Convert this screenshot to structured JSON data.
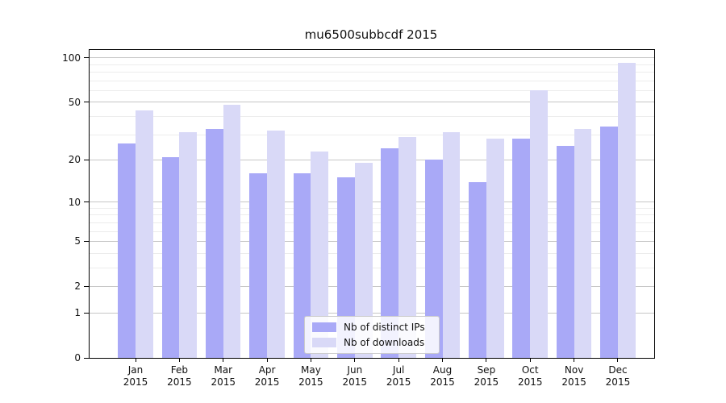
{
  "title": "mu6500subbcdf 2015",
  "chart_data": {
    "type": "bar",
    "title": "mu6500subbcdf 2015",
    "categories": [
      "Jan",
      "Feb",
      "Mar",
      "Apr",
      "May",
      "Jun",
      "Jul",
      "Aug",
      "Sep",
      "Oct",
      "Nov",
      "Dec"
    ],
    "year_label": "2015",
    "series": [
      {
        "name": "Nb of distinct IPs",
        "color": "#a9a9f7",
        "values": [
          26,
          21,
          33,
          16,
          16,
          15,
          24,
          20,
          14,
          28,
          25,
          34
        ]
      },
      {
        "name": "Nb of downloads",
        "color": "#d9d9f7",
        "values": [
          44,
          31,
          48,
          32,
          23,
          19,
          29,
          31,
          28,
          60,
          33,
          93
        ]
      }
    ],
    "xlabel": "",
    "ylabel": "",
    "yscale": "log1p",
    "ylim": [
      0,
      113
    ],
    "yticks": [
      0,
      1,
      2,
      5,
      10,
      20,
      50,
      100
    ],
    "minor_yticks": [
      3,
      4,
      6,
      7,
      8,
      9,
      30,
      40,
      60,
      70,
      80,
      90
    ],
    "grid": "horizontal",
    "legend_position": "inside lower-center"
  },
  "colors": {
    "major_grid": "#c6c6c6",
    "minor_grid": "#ececec",
    "axis": "#000000",
    "text": "#111111",
    "legend_border": "#cccccc",
    "background": "#ffffff"
  }
}
